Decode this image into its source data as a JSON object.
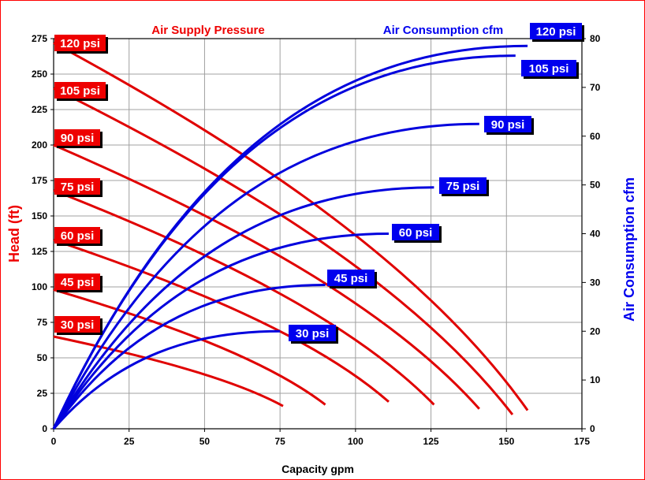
{
  "chart_data": {
    "type": "line",
    "xlabel": "Capacity gpm",
    "ylabel": "Head (ft)",
    "y2label": "Air Consumption cfm",
    "legend": {
      "head_title": "Air Supply Pressure",
      "air_title": "Air Consumption cfm"
    },
    "xlim": [
      0,
      175
    ],
    "ylim": [
      0,
      275
    ],
    "y2lim": [
      0,
      80
    ],
    "x_ticks": [
      "0",
      "25",
      "50",
      "75",
      "100",
      "125",
      "150",
      "175"
    ],
    "y_ticks": [
      "0",
      "25",
      "50",
      "75",
      "100",
      "125",
      "150",
      "175",
      "200",
      "225",
      "250",
      "275"
    ],
    "y2_ticks": [
      "0",
      "10",
      "20",
      "30",
      "40",
      "50",
      "60",
      "70",
      "80"
    ],
    "grid": true,
    "colors": {
      "head": "#e00000",
      "air": "#0000dd",
      "label_red": "#ee0000",
      "label_blue": "#0000ee"
    },
    "head_series": [
      {
        "name": "120 psi",
        "x0": 0,
        "y0": 272,
        "x1": 157,
        "y1": 13
      },
      {
        "name": "105 psi",
        "x0": 0,
        "y0": 240,
        "x1": 152,
        "y1": 10
      },
      {
        "name": "90 psi",
        "x0": 0,
        "y0": 200,
        "x1": 141,
        "y1": 14
      },
      {
        "name": "75 psi",
        "x0": 0,
        "y0": 168,
        "x1": 126,
        "y1": 17
      },
      {
        "name": "60 psi",
        "x0": 0,
        "y0": 133,
        "x1": 111,
        "y1": 19
      },
      {
        "name": "45 psi",
        "x0": 0,
        "y0": 98,
        "x1": 90,
        "y1": 17
      },
      {
        "name": "30 psi",
        "x0": 0,
        "y0": 65,
        "x1": 76,
        "y1": 16
      }
    ],
    "air_series": [
      {
        "name": "120 psi",
        "x1": 157,
        "y1": 78.5
      },
      {
        "name": "105 psi",
        "x1": 153,
        "y1": 76.5
      },
      {
        "name": "90 psi",
        "x1": 141,
        "y1": 62.5
      },
      {
        "name": "75 psi",
        "x1": 126,
        "y1": 49.5
      },
      {
        "name": "60 psi",
        "x1": 111,
        "y1": 40
      },
      {
        "name": "45 psi",
        "x1": 90,
        "y1": 29.5
      },
      {
        "name": "30 psi",
        "x1": 75,
        "y1": 20
      }
    ]
  }
}
